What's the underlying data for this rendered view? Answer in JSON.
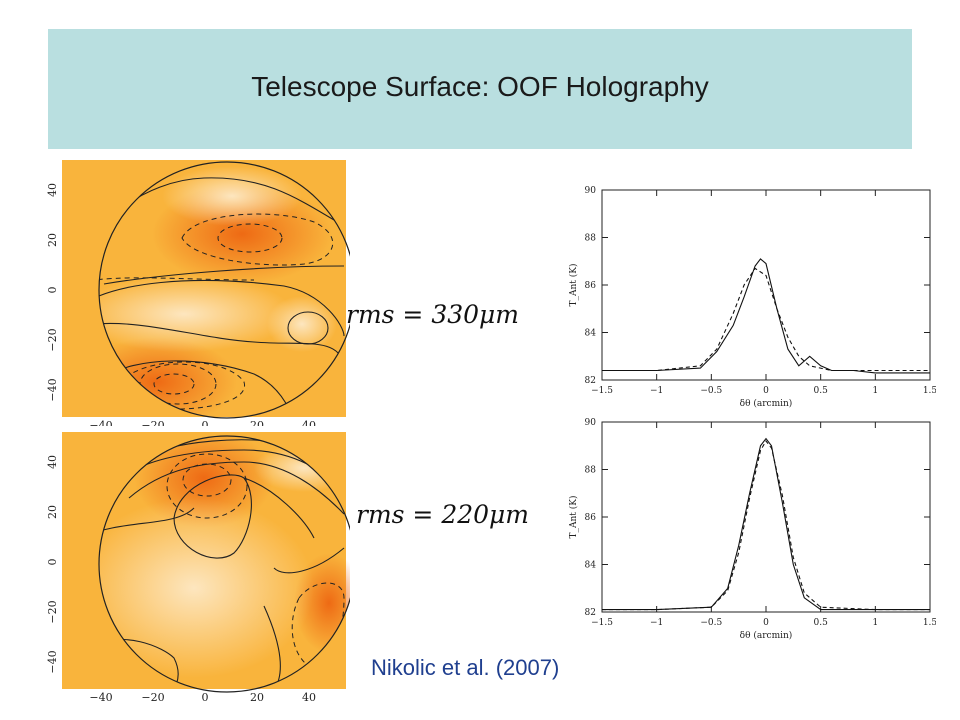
{
  "slide": {
    "title": "Telescope Surface: OOF Holography",
    "caption": "Nikolic et al. (2007)"
  },
  "colors": {
    "title_band": "#b9dfe0",
    "caption": "#1f3f8f",
    "map_background": "#f9b43c",
    "map_dark": "#ee6a14",
    "map_light": "#fde6bf"
  },
  "equations": {
    "top": "rms = 330μm",
    "bottom": "rms = 220μm"
  },
  "maps": {
    "x_ticks": [
      "−40",
      "−20",
      "0",
      "20",
      "40"
    ],
    "y_ticks": [
      "40",
      "20",
      "0",
      "−20",
      "−40"
    ]
  },
  "chart_data": [
    {
      "type": "line",
      "xlabel": "δθ (arcmin)",
      "ylabel": "T_Ant (K)",
      "xlim": [
        -1.5,
        1.5
      ],
      "ylim": [
        82,
        90
      ],
      "x_ticks": [
        "−1.5",
        "−1",
        "−0.5",
        "0",
        "0.5",
        "1",
        "1.5"
      ],
      "y_ticks": [
        "82",
        "84",
        "86",
        "88",
        "90"
      ],
      "series": [
        {
          "style": "solid",
          "x": [
            -1.5,
            -1.0,
            -0.6,
            -0.45,
            -0.3,
            -0.2,
            -0.1,
            -0.05,
            0.0,
            0.1,
            0.2,
            0.3,
            0.4,
            0.5,
            0.6,
            0.8,
            1.0,
            1.5
          ],
          "y": [
            82.4,
            82.4,
            82.5,
            83.2,
            84.3,
            85.5,
            86.8,
            87.1,
            86.9,
            85.0,
            83.3,
            82.6,
            83.0,
            82.6,
            82.4,
            82.4,
            82.3,
            82.3
          ]
        },
        {
          "style": "dashed",
          "x": [
            -1.5,
            -1.0,
            -0.6,
            -0.45,
            -0.3,
            -0.2,
            -0.1,
            0.0,
            0.1,
            0.2,
            0.3,
            0.4,
            0.6,
            1.0,
            1.5
          ],
          "y": [
            82.4,
            82.4,
            82.6,
            83.3,
            84.8,
            86.0,
            86.7,
            86.4,
            85.0,
            83.8,
            83.0,
            82.6,
            82.4,
            82.4,
            82.4
          ]
        }
      ]
    },
    {
      "type": "line",
      "xlabel": "δθ (arcmin)",
      "ylabel": "T_Ant (K)",
      "xlim": [
        -1.5,
        1.5
      ],
      "ylim": [
        82,
        90
      ],
      "x_ticks": [
        "−1.5",
        "−1",
        "−0.5",
        "0",
        "0.5",
        "1",
        "1.5"
      ],
      "y_ticks": [
        "82",
        "84",
        "86",
        "88",
        "90"
      ],
      "series": [
        {
          "style": "solid",
          "x": [
            -1.5,
            -1.0,
            -0.5,
            -0.35,
            -0.25,
            -0.15,
            -0.05,
            0.0,
            0.05,
            0.15,
            0.25,
            0.35,
            0.5,
            1.0,
            1.5
          ],
          "y": [
            82.1,
            82.1,
            82.2,
            83.0,
            84.8,
            87.0,
            89.0,
            89.3,
            89.0,
            86.6,
            84.0,
            82.6,
            82.1,
            82.1,
            82.1
          ]
        },
        {
          "style": "dashed",
          "x": [
            -1.5,
            -1.0,
            -0.5,
            -0.35,
            -0.25,
            -0.15,
            -0.05,
            0.0,
            0.05,
            0.15,
            0.25,
            0.35,
            0.5,
            1.0,
            1.5
          ],
          "y": [
            82.1,
            82.1,
            82.2,
            82.9,
            84.5,
            86.8,
            88.8,
            89.2,
            88.9,
            86.9,
            84.3,
            82.8,
            82.2,
            82.1,
            82.1
          ]
        }
      ]
    }
  ]
}
